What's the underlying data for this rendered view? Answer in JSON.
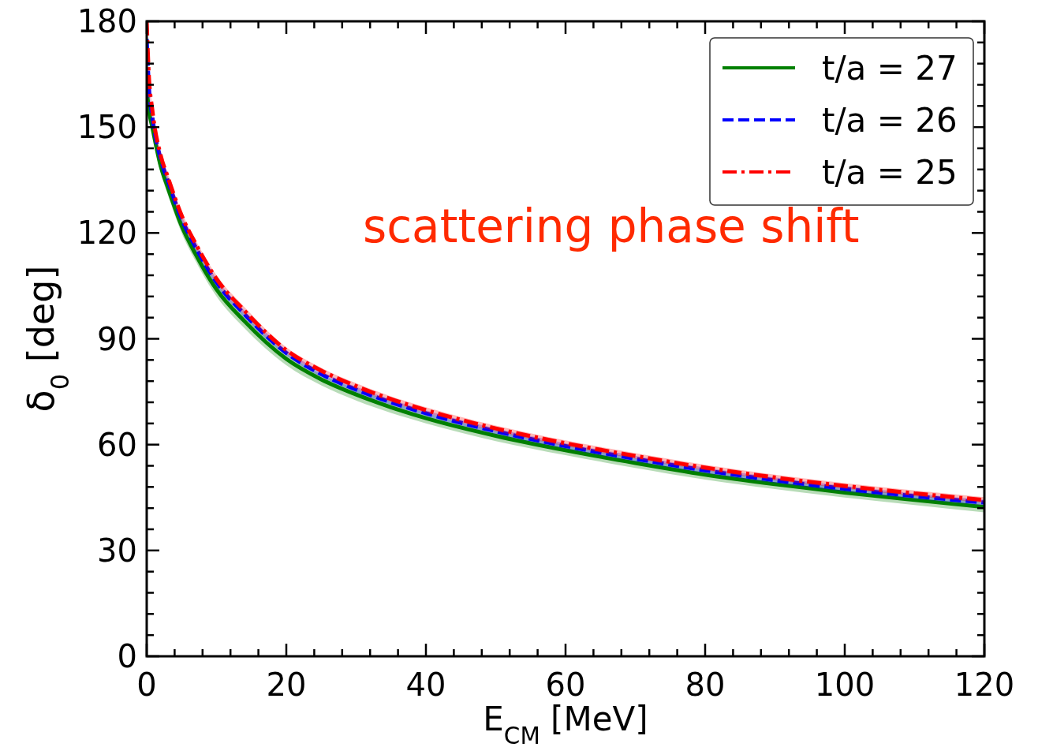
{
  "chart_data": {
    "type": "line",
    "xlabel": "E$_{CM}$ [MeV]",
    "ylabel": "δ$_{0}$ [deg]",
    "annotations": [
      "scattering phase shift"
    ],
    "legend": "top right",
    "grid": false,
    "xlim": [
      0,
      120
    ],
    "ylim": [
      0,
      180
    ],
    "xticks": [
      0,
      {
        "value": 4,
        "label": null
      },
      {
        "value": 8,
        "label": null
      },
      {
        "value": 12,
        "label": null
      },
      {
        "value": 16,
        "label": null
      },
      20,
      {
        "value": 24,
        "label": null
      },
      {
        "value": 28,
        "label": null
      },
      {
        "value": 32,
        "label": null
      },
      {
        "value": 36,
        "label": null
      },
      40,
      {
        "value": 44,
        "label": null
      },
      {
        "value": 48,
        "label": null
      },
      {
        "value": 52,
        "label": null
      },
      {
        "value": 56,
        "label": null
      },
      60,
      {
        "value": 64,
        "label": null
      },
      {
        "value": 68,
        "label": null
      },
      {
        "value": 72,
        "label": null
      },
      {
        "value": 76,
        "label": null
      },
      80,
      {
        "value": 84,
        "label": null
      },
      {
        "value": 88,
        "label": null
      },
      {
        "value": 92,
        "label": null
      },
      {
        "value": 96,
        "label": null
      },
      100,
      {
        "value": 104,
        "label": null
      },
      {
        "value": 108,
        "label": null
      },
      {
        "value": 112,
        "label": null
      },
      {
        "value": 116,
        "label": null
      },
      120
    ],
    "yticks": [
      0,
      {
        "value": 6,
        "label": null
      },
      {
        "value": 12,
        "label": null
      },
      {
        "value": 18,
        "label": null
      },
      {
        "value": 24,
        "label": null
      },
      30,
      {
        "value": 36,
        "label": null
      },
      {
        "value": 42,
        "label": null
      },
      {
        "value": 48,
        "label": null
      },
      {
        "value": 54,
        "label": null
      },
      60,
      {
        "value": 66,
        "label": null
      },
      {
        "value": 72,
        "label": null
      },
      {
        "value": 78,
        "label": null
      },
      {
        "value": 84,
        "label": null
      },
      90,
      {
        "value": 96,
        "label": null
      },
      {
        "value": 102,
        "label": null
      },
      {
        "value": 108,
        "label": null
      },
      {
        "value": 114,
        "label": null
      },
      120,
      {
        "value": 126,
        "label": null
      },
      {
        "value": 132,
        "label": null
      },
      {
        "value": 138,
        "label": null
      },
      {
        "value": 144,
        "label": null
      },
      150,
      {
        "value": 156,
        "label": null
      },
      {
        "value": 162,
        "label": null
      },
      {
        "value": 168,
        "label": null
      },
      {
        "value": 174,
        "label": null
      },
      180
    ],
    "x": [
      0,
      0.3,
      0.8,
      2,
      3,
      5,
      7,
      10,
      14,
      20,
      25,
      30,
      35,
      40,
      50,
      60,
      70,
      80,
      90,
      100,
      110,
      120
    ],
    "series": [
      {
        "name": "t/a = 27",
        "color": "#008000",
        "line_style": "solid",
        "values": [
          161,
          155,
          150,
          139,
          133,
          122,
          114,
          104,
          95,
          84.3,
          78.5,
          74.2,
          70.6,
          67.5,
          62.5,
          58.4,
          54.8,
          51.5,
          48.8,
          46.4,
          44.3,
          42.3
        ],
        "lower": [
          159,
          153,
          148,
          137,
          131,
          120,
          112,
          102,
          93,
          82.5,
          76.8,
          72.5,
          69,
          66,
          61,
          57,
          53.4,
          50.1,
          47.4,
          45,
          42.9,
          40.8
        ],
        "upper": [
          163,
          157,
          152,
          141,
          135,
          124,
          116,
          106,
          97,
          86,
          80,
          75.8,
          72.2,
          69,
          64,
          59.8,
          56.2,
          52.9,
          50.2,
          47.8,
          45.7,
          43.8
        ]
      },
      {
        "name": "t/a = 26",
        "color": "#0000ff",
        "line_style": "dashed",
        "values": [
          175,
          162,
          153,
          141,
          135,
          124,
          116,
          106,
          97,
          86,
          80,
          75.6,
          72,
          68.9,
          63.8,
          59.6,
          56,
          52.7,
          49.9,
          47.5,
          45.4,
          43.6
        ],
        "lower": [
          174,
          161,
          152,
          140,
          134,
          123,
          115,
          105,
          96,
          85.2,
          79.2,
          74.8,
          71.2,
          68.1,
          63,
          58.8,
          55.2,
          51.9,
          49.1,
          46.7,
          44.6,
          42.8
        ],
        "upper": [
          176,
          163,
          154,
          142,
          136,
          125,
          117,
          107,
          98,
          86.8,
          80.8,
          76.4,
          72.8,
          69.7,
          64.6,
          60.4,
          56.8,
          53.5,
          50.7,
          48.3,
          46.2,
          44.4
        ]
      },
      {
        "name": "t/a = 25",
        "color": "#ff0000",
        "line_style": "dashdot",
        "values": [
          180,
          165,
          155,
          142,
          136,
          125,
          117,
          107,
          98,
          86.8,
          81,
          76.6,
          72.9,
          69.8,
          64.6,
          60.4,
          56.8,
          53.5,
          50.7,
          48.3,
          46.2,
          44.3
        ],
        "lower": [
          179,
          164,
          154,
          141,
          135,
          124,
          116,
          106,
          97,
          86,
          80.2,
          75.8,
          72.1,
          69,
          63.8,
          59.6,
          56,
          52.7,
          49.9,
          47.5,
          45.4,
          43.5
        ],
        "upper": [
          180,
          166,
          156,
          143,
          137,
          126,
          118,
          108,
          99,
          87.6,
          81.8,
          77.4,
          73.7,
          70.6,
          65.4,
          61.2,
          57.6,
          54.3,
          51.5,
          49.1,
          47,
          45.1
        ]
      }
    ]
  }
}
